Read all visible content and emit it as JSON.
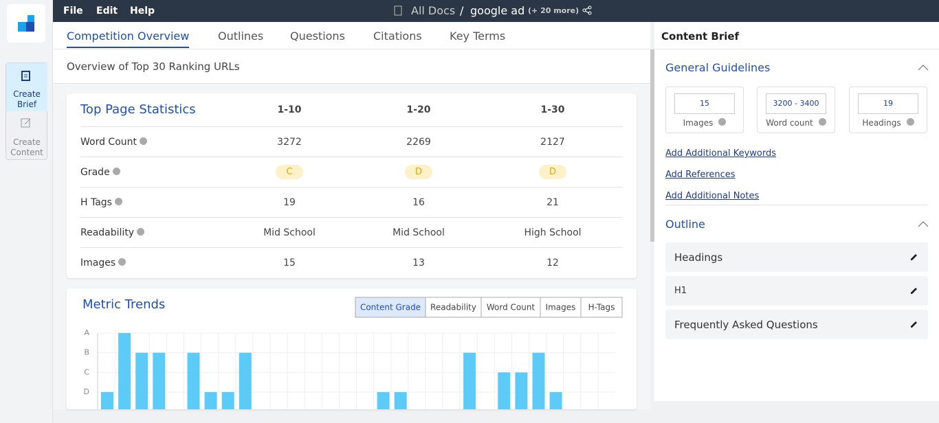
{
  "menu": [
    "File",
    "Edit",
    "Help"
  ],
  "breadcrumb": {
    "root": "All Docs",
    "separator": "/",
    "doc": "google ad",
    "more": "(+ 20 more)"
  },
  "sidebar": [
    "Create Brief",
    "Create Content"
  ],
  "tabs": [
    "Competition Overview",
    "Outlines",
    "Questions",
    "Citations",
    "Key Terms"
  ],
  "overview_title": "Overview of Top 30 Ranking URLs",
  "stats": {
    "title": "Top Page Statistics",
    "columns": [
      "1-10",
      "1-20",
      "1-30"
    ],
    "rows": [
      {
        "label": "Word Count",
        "values": [
          3272,
          2269,
          2127
        ]
      },
      {
        "label": "Grade",
        "values": [
          "C",
          "D",
          "D"
        ]
      },
      {
        "label": "H Tags",
        "values": [
          19,
          16,
          21
        ]
      },
      {
        "label": "Readability",
        "values": [
          "Mid School",
          "Mid School",
          "High School"
        ]
      },
      {
        "label": "Images",
        "values": [
          15,
          13,
          12
        ]
      }
    ]
  },
  "chart_data": {
    "type": "bar",
    "title": "Metric Trends",
    "filters": [
      "Content Grade",
      "Readability",
      "Word Count",
      "Images",
      "H-Tags"
    ],
    "categories": [
      null,
      null,
      null,
      null,
      null,
      null,
      null,
      null,
      null,
      null,
      null,
      null,
      null,
      null,
      null,
      null,
      null,
      null,
      null,
      null,
      null,
      null,
      null,
      null,
      null,
      null,
      null,
      null,
      null,
      null
    ],
    "values": [
      1,
      4,
      3,
      3,
      null,
      3,
      1,
      1,
      3,
      null,
      null,
      null,
      null,
      null,
      null,
      null,
      1,
      1,
      null,
      null,
      null,
      3,
      null,
      2,
      2,
      3,
      1,
      null,
      null,
      null
    ],
    "ylim": [
      0,
      4
    ],
    "yticks": [
      {
        "value": 4,
        "label": "A"
      },
      {
        "value": 3,
        "label": "B"
      },
      {
        "value": 2,
        "label": "C"
      },
      {
        "value": 1,
        "label": "D"
      }
    ],
    "color": "#5ccbf7",
    "grid": true
  },
  "brief": {
    "title": "Content Brief",
    "guidelines": {
      "title": "General Guidelines",
      "stats": [
        {
          "value": 15,
          "label": "Images"
        },
        {
          "value": "3200 - 3400",
          "label": "Word count"
        },
        {
          "value": 19,
          "label": "Headings"
        }
      ],
      "links": [
        "Add Additional Keywords",
        "Add References",
        "Add Additional Notes"
      ]
    },
    "outline": {
      "title": "Outline",
      "items": [
        "Headings",
        "H1",
        "Frequently Asked Questions"
      ]
    }
  }
}
